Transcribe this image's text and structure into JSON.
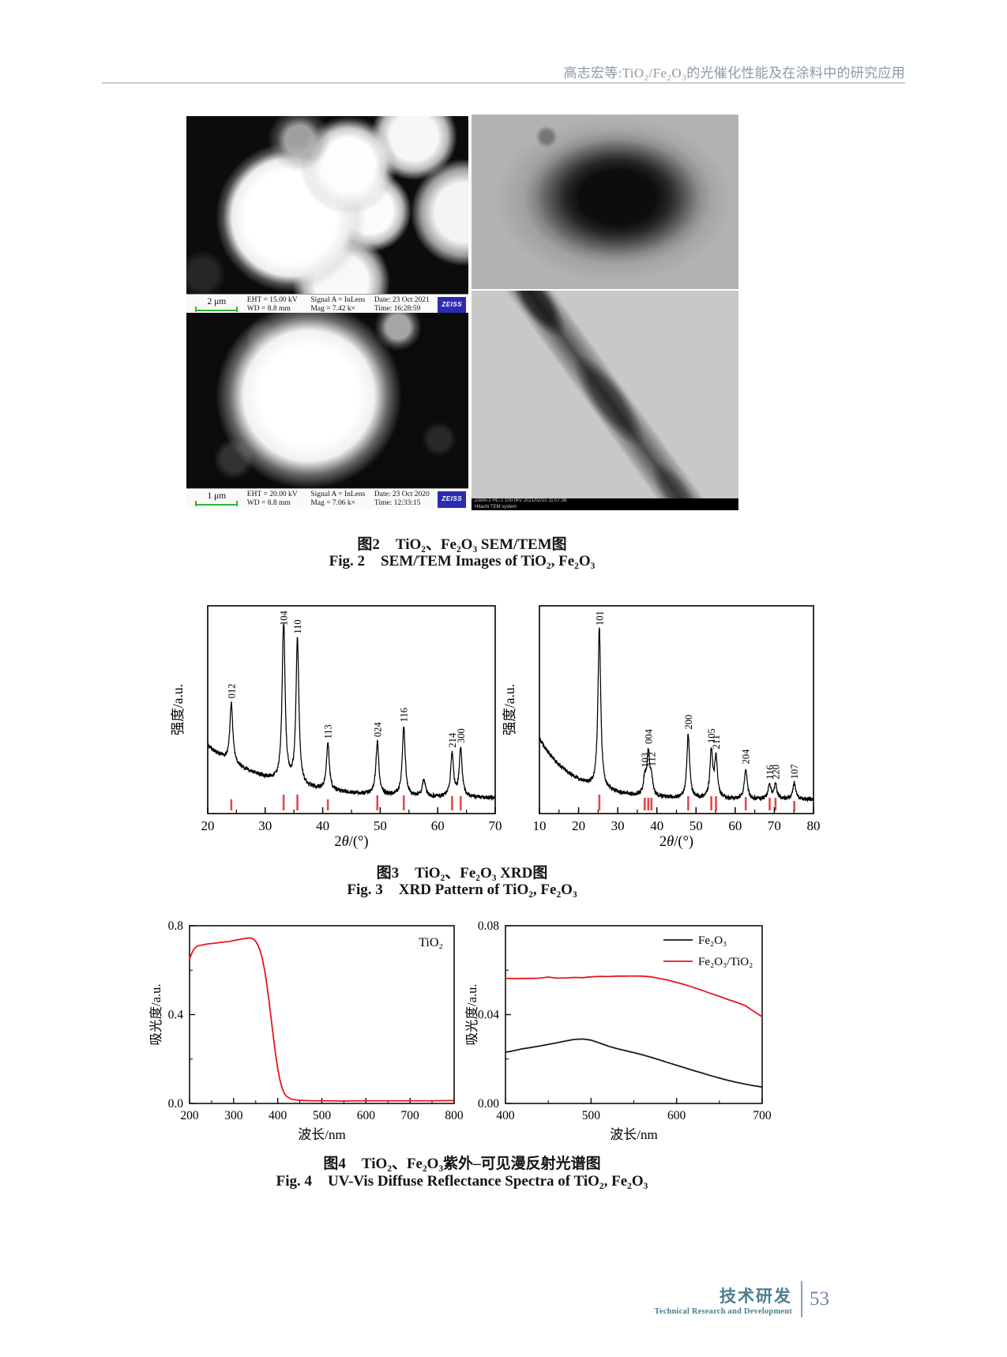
{
  "header": {
    "running_title": "高志宏等:TiO₂/Fe₂O₃的光催化性能及在涂料中的研究应用"
  },
  "figure2": {
    "sem1": {
      "scale": "2 μm",
      "eht": "EHT = 15.00 kV",
      "wd": "WD = 8.8 mm",
      "signal": "Signal A = InLens",
      "mag": "Mag = 7.42 k×",
      "date": "Date: 23 Oct 2021",
      "time": "Time: 16:28:59",
      "logo": "ZEISS"
    },
    "sem2": {
      "scale": "1 μm",
      "eht": "EHT = 20.00 kV",
      "wd": "WD = 8.8 mm",
      "signal": "Signal A = InLens",
      "mag": "Mag = 7.06 k×",
      "date": "Date: 23 Oct 2020",
      "time": "Time: 12:33:15",
      "logo": "ZEISS"
    },
    "tem2": {
      "line1": "Zoom-1 HC-1 100.0kV 2021/02/15 11:07:38",
      "line2": "Hitachi TEM system"
    },
    "caption": {
      "zh_label": "图2",
      "zh_text": "TiO₂、Fe₂O₃ SEM/TEM图",
      "en_label": "Fig. 2",
      "en_text": "SEM/TEM Images of TiO₂, Fe₂O₃"
    }
  },
  "figure3": {
    "caption": {
      "zh_label": "图3",
      "zh_text": "TiO₂、Fe₂O₃ XRD图",
      "en_label": "Fig. 3",
      "en_text": "XRD Pattern of TiO₂, Fe₂O₃"
    }
  },
  "figure4": {
    "caption": {
      "zh_label": "图4",
      "zh_text": "TiO₂、Fe₂O₃紫外–可见漫反射光谱图",
      "en_label": "Fig. 4",
      "en_text": "UV-Vis Diffuse Reflectance Spectra of TiO₂, Fe₂O₃"
    }
  },
  "footer": {
    "section_zh": "技术研发",
    "section_en": "Technical Research and Development",
    "page": "53"
  },
  "chart_data": [
    {
      "type": "line",
      "subtype": "xrd",
      "material": "Fe₂O₃",
      "xlabel": "2θ/(°)",
      "ylabel": "强度/a.u.",
      "xlim": [
        20,
        70
      ],
      "xticks": [
        20,
        30,
        40,
        50,
        60,
        70
      ],
      "grid": false,
      "line_color": "#000000",
      "ref_tick_color": "#e4484c",
      "peak_width": 0.3,
      "baseline": {
        "amp": 0.26,
        "decay": 11,
        "floor": 0.06
      },
      "peaks": [
        {
          "two_theta": 24.1,
          "rel_intensity": 0.37,
          "hkl": "012"
        },
        {
          "two_theta": 33.2,
          "rel_intensity": 1.0,
          "hkl": "104"
        },
        {
          "two_theta": 35.6,
          "rel_intensity": 0.9,
          "hkl": "110"
        },
        {
          "two_theta": 40.9,
          "rel_intensity": 0.29,
          "hkl": "113"
        },
        {
          "two_theta": 49.5,
          "rel_intensity": 0.33,
          "hkl": "024"
        },
        {
          "two_theta": 54.1,
          "rel_intensity": 0.43,
          "hkl": "116"
        },
        {
          "two_theta": 57.6,
          "rel_intensity": 0.11,
          "hkl": ""
        },
        {
          "two_theta": 62.5,
          "rel_intensity": 0.27,
          "hkl": "214"
        },
        {
          "two_theta": 64.0,
          "rel_intensity": 0.3,
          "hkl": "300"
        }
      ],
      "ref_ticks": [
        [
          24.1,
          0.7
        ],
        [
          33.2,
          1.0
        ],
        [
          35.6,
          1.0
        ],
        [
          40.9,
          0.7
        ],
        [
          49.5,
          0.95
        ],
        [
          54.1,
          0.95
        ],
        [
          62.5,
          0.9
        ],
        [
          64.0,
          0.9
        ]
      ]
    },
    {
      "type": "line",
      "subtype": "xrd",
      "material": "TiO₂",
      "xlabel": "2θ/(°)",
      "ylabel": "强度/a.u.",
      "xlim": [
        10,
        80
      ],
      "xticks": [
        10,
        20,
        30,
        40,
        50,
        60,
        70,
        80
      ],
      "grid": false,
      "line_color": "#000000",
      "ref_tick_color": "#e4484c",
      "peak_width": 0.42,
      "baseline": {
        "amp": 0.3,
        "decay": 9,
        "floor": 0.055
      },
      "peaks": [
        {
          "two_theta": 25.3,
          "rel_intensity": 1.0,
          "hkl": "101"
        },
        {
          "two_theta": 36.9,
          "rel_intensity": 0.1,
          "hkl": "103"
        },
        {
          "two_theta": 37.8,
          "rel_intensity": 0.26,
          "hkl": "004"
        },
        {
          "two_theta": 38.6,
          "rel_intensity": 0.1,
          "hkl": "112"
        },
        {
          "two_theta": 48.0,
          "rel_intensity": 0.4,
          "hkl": "200"
        },
        {
          "two_theta": 53.9,
          "rel_intensity": 0.29,
          "hkl": "105"
        },
        {
          "two_theta": 55.1,
          "rel_intensity": 0.25,
          "hkl": "211"
        },
        {
          "two_theta": 62.7,
          "rel_intensity": 0.19,
          "hkl": "204"
        },
        {
          "two_theta": 68.8,
          "rel_intensity": 0.09,
          "hkl": "116"
        },
        {
          "two_theta": 70.3,
          "rel_intensity": 0.09,
          "hkl": "220"
        },
        {
          "two_theta": 75.1,
          "rel_intensity": 0.1,
          "hkl": "107"
        }
      ],
      "ref_ticks": [
        [
          25.3,
          1.0
        ],
        [
          36.9,
          0.8
        ],
        [
          37.8,
          0.8
        ],
        [
          38.6,
          0.8
        ],
        [
          48.0,
          0.9
        ],
        [
          53.9,
          0.9
        ],
        [
          55.1,
          0.9
        ],
        [
          62.7,
          0.85
        ],
        [
          68.8,
          0.8
        ],
        [
          70.3,
          0.8
        ],
        [
          75.1,
          0.6
        ]
      ]
    },
    {
      "type": "line",
      "subtype": "spectrum",
      "xlabel": "波长/nm",
      "ylabel": "吸光度/a.u.",
      "xlim": [
        200,
        800
      ],
      "ylim": [
        0,
        0.8
      ],
      "xticks": [
        200,
        300,
        400,
        500,
        600,
        700,
        800
      ],
      "yticks": [
        {
          "v": 0.0,
          "label": "0.0"
        },
        {
          "v": 0.4,
          "label": "0.4"
        },
        {
          "v": 0.8,
          "label": "0.8"
        }
      ],
      "annotation": "TiO₂",
      "legend": false,
      "series": [
        {
          "name": "TiO₂",
          "color": "#e8161c",
          "x": [
            200,
            205,
            210,
            215,
            220,
            230,
            240,
            250,
            260,
            270,
            280,
            290,
            300,
            310,
            320,
            330,
            335,
            340,
            345,
            350,
            355,
            360,
            365,
            370,
            375,
            380,
            385,
            390,
            395,
            400,
            405,
            410,
            415,
            420,
            430,
            440,
            460,
            480,
            500,
            550,
            600,
            650,
            700,
            750,
            800
          ],
          "y": [
            0.65,
            0.676,
            0.695,
            0.705,
            0.71,
            0.714,
            0.718,
            0.72,
            0.722,
            0.725,
            0.727,
            0.729,
            0.733,
            0.737,
            0.741,
            0.744,
            0.745,
            0.744,
            0.74,
            0.73,
            0.713,
            0.688,
            0.652,
            0.603,
            0.54,
            0.465,
            0.383,
            0.3,
            0.222,
            0.156,
            0.105,
            0.068,
            0.045,
            0.032,
            0.02,
            0.016,
            0.013,
            0.012,
            0.012,
            0.011,
            0.012,
            0.012,
            0.012,
            0.012,
            0.013
          ]
        }
      ]
    },
    {
      "type": "line",
      "subtype": "spectrum",
      "xlabel": "波长/nm",
      "ylabel": "吸光度/a.u.",
      "xlim": [
        400,
        700
      ],
      "ylim": [
        0,
        0.08
      ],
      "xticks": [
        400,
        500,
        600,
        700
      ],
      "yticks": [
        {
          "v": 0.0,
          "label": "0.00"
        },
        {
          "v": 0.04,
          "label": "0.04"
        },
        {
          "v": 0.08,
          "label": "0.08"
        }
      ],
      "annotation": "",
      "legend": true,
      "series": [
        {
          "name": "Fe₂O₃",
          "color": "#1a1a1a",
          "x": [
            400,
            410,
            420,
            430,
            440,
            450,
            460,
            470,
            480,
            490,
            500,
            510,
            520,
            530,
            540,
            550,
            560,
            570,
            580,
            590,
            600,
            610,
            620,
            630,
            640,
            650,
            660,
            670,
            680,
            690,
            700
          ],
          "y": [
            0.023,
            0.0238,
            0.0246,
            0.0252,
            0.0259,
            0.0266,
            0.0273,
            0.0281,
            0.0288,
            0.029,
            0.0285,
            0.0272,
            0.0258,
            0.0247,
            0.0238,
            0.0229,
            0.0219,
            0.0208,
            0.0196,
            0.0184,
            0.0172,
            0.016,
            0.0148,
            0.0137,
            0.0125,
            0.0114,
            0.0104,
            0.0095,
            0.0087,
            0.008,
            0.0074
          ]
        },
        {
          "name": "Fe₂O₃/TiO₂",
          "color": "#e8161c",
          "x": [
            400,
            410,
            420,
            430,
            440,
            450,
            460,
            470,
            480,
            490,
            500,
            510,
            520,
            530,
            540,
            550,
            560,
            570,
            580,
            590,
            600,
            610,
            620,
            630,
            640,
            650,
            660,
            670,
            680,
            690,
            700
          ],
          "y": [
            0.0563,
            0.0562,
            0.0563,
            0.0563,
            0.0564,
            0.0569,
            0.0564,
            0.0565,
            0.0567,
            0.0566,
            0.057,
            0.0572,
            0.0571,
            0.0573,
            0.0573,
            0.0574,
            0.0573,
            0.057,
            0.0563,
            0.0555,
            0.0545,
            0.0534,
            0.0522,
            0.0509,
            0.0495,
            0.0482,
            0.0468,
            0.0455,
            0.0441,
            0.0415,
            0.039
          ]
        }
      ]
    }
  ]
}
